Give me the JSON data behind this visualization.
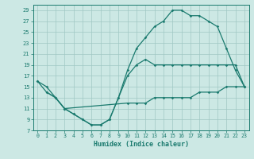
{
  "bg_color": "#cce8e4",
  "grid_color": "#a0c8c4",
  "line_color": "#1a7a6e",
  "xlabel": "Humidex (Indice chaleur)",
  "xlim": [
    -0.5,
    23.5
  ],
  "ylim": [
    7,
    30
  ],
  "yticks": [
    7,
    9,
    11,
    13,
    15,
    17,
    19,
    21,
    23,
    25,
    27,
    29
  ],
  "xticks": [
    0,
    1,
    2,
    3,
    4,
    5,
    6,
    7,
    8,
    9,
    10,
    11,
    12,
    13,
    14,
    15,
    16,
    17,
    18,
    19,
    20,
    21,
    22,
    23
  ],
  "line1_x": [
    0,
    1,
    2,
    3,
    4,
    5,
    6,
    7,
    8,
    9,
    10,
    11,
    12,
    13,
    14,
    15,
    16,
    17,
    18,
    19,
    20,
    21,
    22,
    23
  ],
  "line1_y": [
    16,
    14,
    13,
    11,
    10,
    9,
    8,
    8,
    9,
    13,
    18,
    22,
    24,
    26,
    27,
    29,
    29,
    28,
    28,
    27,
    26,
    22,
    18,
    15
  ],
  "line2_x": [
    0,
    1,
    2,
    3,
    4,
    5,
    6,
    7,
    8,
    9,
    10,
    11,
    12,
    13,
    14,
    15,
    16,
    17,
    18,
    19,
    20,
    21,
    22,
    23
  ],
  "line2_y": [
    16,
    15,
    13,
    11,
    10,
    9,
    8,
    8,
    9,
    13,
    17,
    19,
    20,
    19,
    19,
    19,
    19,
    19,
    19,
    19,
    19,
    19,
    19,
    15
  ],
  "line3_x": [
    1,
    2,
    3,
    10,
    11,
    12,
    13,
    14,
    15,
    16,
    17,
    18,
    19,
    20,
    21,
    22,
    23
  ],
  "line3_y": [
    14,
    13,
    11,
    12,
    12,
    12,
    13,
    13,
    13,
    13,
    13,
    14,
    14,
    14,
    15,
    15,
    15
  ]
}
